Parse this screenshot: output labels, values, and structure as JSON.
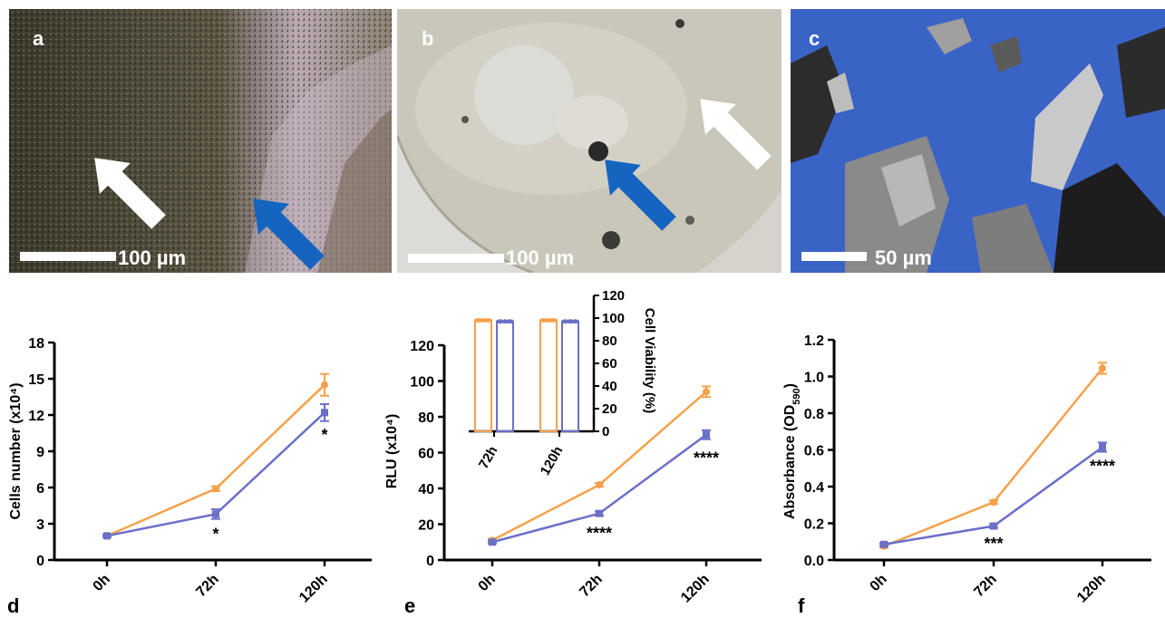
{
  "panels": {
    "a": {
      "label": "a",
      "scale": "100 µm"
    },
    "b": {
      "label": "b",
      "scale": "100 µm"
    },
    "c": {
      "label": "c",
      "scale": "50 µm"
    },
    "d": {
      "label": "d"
    },
    "e": {
      "label": "e"
    },
    "f": {
      "label": "f"
    }
  },
  "colors": {
    "series1": "#F5A14A",
    "series2": "#6A6FC8",
    "sem_blue": "#3A63C6",
    "arrow_blue": "#1565C0"
  },
  "chart_data": [
    {
      "id": "d",
      "type": "line",
      "categories": [
        "0h",
        "72h",
        "120h"
      ],
      "ylabel": "Cells number (x10⁴)",
      "ylim": [
        0,
        18
      ],
      "yticks": [
        "0",
        "3",
        "6",
        "9",
        "12",
        "15",
        "18"
      ],
      "series": [
        {
          "values": [
            2.0,
            5.9,
            14.5
          ],
          "err": [
            0.1,
            0.2,
            0.9
          ],
          "color": "#F5A14A",
          "marker": "circle"
        },
        {
          "values": [
            2.0,
            3.8,
            12.2
          ],
          "err": [
            0.1,
            0.4,
            0.7
          ],
          "color": "#6A6FC8",
          "marker": "square"
        }
      ],
      "annotations": [
        {
          "category": "72h",
          "text": "*",
          "y": 2.3
        },
        {
          "category": "120h",
          "text": "*",
          "y": 10.5
        }
      ]
    },
    {
      "id": "e",
      "type": "line",
      "categories": [
        "0h",
        "72h",
        "120h"
      ],
      "ylabel": "RLU (x10⁴)",
      "ylim": [
        0,
        120
      ],
      "yticks": [
        "0",
        "20",
        "40",
        "60",
        "80",
        "100",
        "120"
      ],
      "series": [
        {
          "values": [
            11,
            42,
            94
          ],
          "err": [
            0.8,
            1.0,
            3.0
          ],
          "color": "#F5A14A",
          "marker": "circle"
        },
        {
          "values": [
            10,
            26,
            70
          ],
          "err": [
            0.8,
            1.2,
            2.5
          ],
          "color": "#6A6FC8",
          "marker": "square"
        }
      ],
      "annotations": [
        {
          "category": "72h",
          "text": "****",
          "y": 16
        },
        {
          "category": "120h",
          "text": "****",
          "y": 58
        }
      ],
      "inset": {
        "type": "bar",
        "categories": [
          "72h",
          "120h"
        ],
        "ylabel": "Cell  Viability (%)",
        "ylim": [
          0,
          120
        ],
        "yticks": [
          "0",
          "20",
          "40",
          "60",
          "80",
          "100",
          "120"
        ],
        "series": [
          {
            "values": [
              98,
              98
            ],
            "color": "#F5A14A"
          },
          {
            "values": [
              97,
              97
            ],
            "color": "#6A6FC8"
          }
        ]
      }
    },
    {
      "id": "f",
      "type": "line",
      "categories": [
        "0h",
        "72h",
        "120h"
      ],
      "ylabel": "Absorbance (OD",
      "ylabel_sub": "590",
      "ylabel_end": ")",
      "ylim": [
        0,
        1.2
      ],
      "yticks": [
        "0.0",
        "0.2",
        "0.4",
        "0.6",
        "0.8",
        "1.0",
        "1.2"
      ],
      "series": [
        {
          "values": [
            0.075,
            0.315,
            1.045
          ],
          "err": [
            0.008,
            0.01,
            0.03
          ],
          "color": "#F5A14A",
          "marker": "circle"
        },
        {
          "values": [
            0.085,
            0.185,
            0.615
          ],
          "err": [
            0.008,
            0.01,
            0.025
          ],
          "color": "#6A6FC8",
          "marker": "square"
        }
      ],
      "annotations": [
        {
          "category": "72h",
          "text": "***",
          "y": 0.1
        },
        {
          "category": "120h",
          "text": "****",
          "y": 0.52
        }
      ]
    }
  ]
}
